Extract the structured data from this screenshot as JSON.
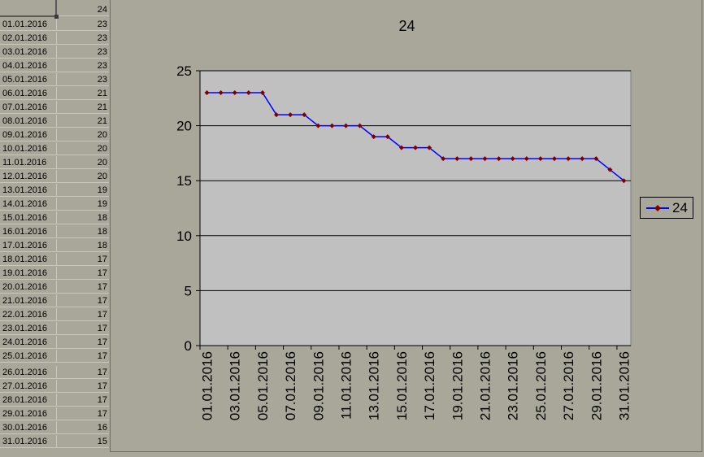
{
  "sheet": {
    "header_value": "24",
    "rows": [
      {
        "date": "01.01.2016",
        "value": "23"
      },
      {
        "date": "02.01.2016",
        "value": "23"
      },
      {
        "date": "03.01.2016",
        "value": "23"
      },
      {
        "date": "04.01.2016",
        "value": "23"
      },
      {
        "date": "05.01.2016",
        "value": "23"
      },
      {
        "date": "06.01.2016",
        "value": "21"
      },
      {
        "date": "07.01.2016",
        "value": "21"
      },
      {
        "date": "08.01.2016",
        "value": "21"
      },
      {
        "date": "09.01.2016",
        "value": "20"
      },
      {
        "date": "10.01.2016",
        "value": "20"
      },
      {
        "date": "11.01.2016",
        "value": "20"
      },
      {
        "date": "12.01.2016",
        "value": "20"
      },
      {
        "date": "13.01.2016",
        "value": "19"
      },
      {
        "date": "14.01.2016",
        "value": "19"
      },
      {
        "date": "15.01.2016",
        "value": "18"
      },
      {
        "date": "16.01.2016",
        "value": "18"
      },
      {
        "date": "17.01.2016",
        "value": "18"
      },
      {
        "date": "18.01.2016",
        "value": "17"
      },
      {
        "date": "19.01.2016",
        "value": "17"
      },
      {
        "date": "20.01.2016",
        "value": "17"
      },
      {
        "date": "21.01.2016",
        "value": "17"
      },
      {
        "date": "22.01.2016",
        "value": "17"
      },
      {
        "date": "23.01.2016",
        "value": "17"
      },
      {
        "date": "24.01.2016",
        "value": "17"
      },
      {
        "date": "25.01.2016",
        "value": "17"
      },
      {
        "date": "26.01.2016",
        "value": "17"
      },
      {
        "date": "27.01.2016",
        "value": "17"
      },
      {
        "date": "28.01.2016",
        "value": "17"
      },
      {
        "date": "29.01.2016",
        "value": "17"
      },
      {
        "date": "30.01.2016",
        "value": "16"
      },
      {
        "date": "31.01.2016",
        "value": "15"
      }
    ]
  },
  "colors": {
    "window_bg": "#a9a799",
    "plot_area": "#c0c0c0",
    "series_line": "#0000ff",
    "series_marker": "#800000",
    "gridline": "#000000"
  },
  "chart_data": {
    "type": "line",
    "title": "24",
    "x": [
      "01.01.2016",
      "02.01.2016",
      "03.01.2016",
      "04.01.2016",
      "05.01.2016",
      "06.01.2016",
      "07.01.2016",
      "08.01.2016",
      "09.01.2016",
      "10.01.2016",
      "11.01.2016",
      "12.01.2016",
      "13.01.2016",
      "14.01.2016",
      "15.01.2016",
      "16.01.2016",
      "17.01.2016",
      "18.01.2016",
      "19.01.2016",
      "20.01.2016",
      "21.01.2016",
      "22.01.2016",
      "23.01.2016",
      "24.01.2016",
      "25.01.2016",
      "26.01.2016",
      "27.01.2016",
      "28.01.2016",
      "29.01.2016",
      "30.01.2016",
      "31.01.2016"
    ],
    "x_tick_labels": [
      "01.01.2016",
      "03.01.2016",
      "05.01.2016",
      "07.01.2016",
      "09.01.2016",
      "11.01.2016",
      "13.01.2016",
      "15.01.2016",
      "17.01.2016",
      "19.01.2016",
      "21.01.2016",
      "23.01.2016",
      "25.01.2016",
      "27.01.2016",
      "29.01.2016",
      "31.01.2016"
    ],
    "series": [
      {
        "name": "24",
        "values": [
          23,
          23,
          23,
          23,
          23,
          21,
          21,
          21,
          20,
          20,
          20,
          20,
          19,
          19,
          18,
          18,
          18,
          17,
          17,
          17,
          17,
          17,
          17,
          17,
          17,
          17,
          17,
          17,
          17,
          16,
          15
        ]
      }
    ],
    "ylim": [
      0,
      25
    ],
    "yticks": [
      0,
      5,
      10,
      15,
      20,
      25
    ],
    "grid": true,
    "legend": "right",
    "marker": "diamond"
  }
}
